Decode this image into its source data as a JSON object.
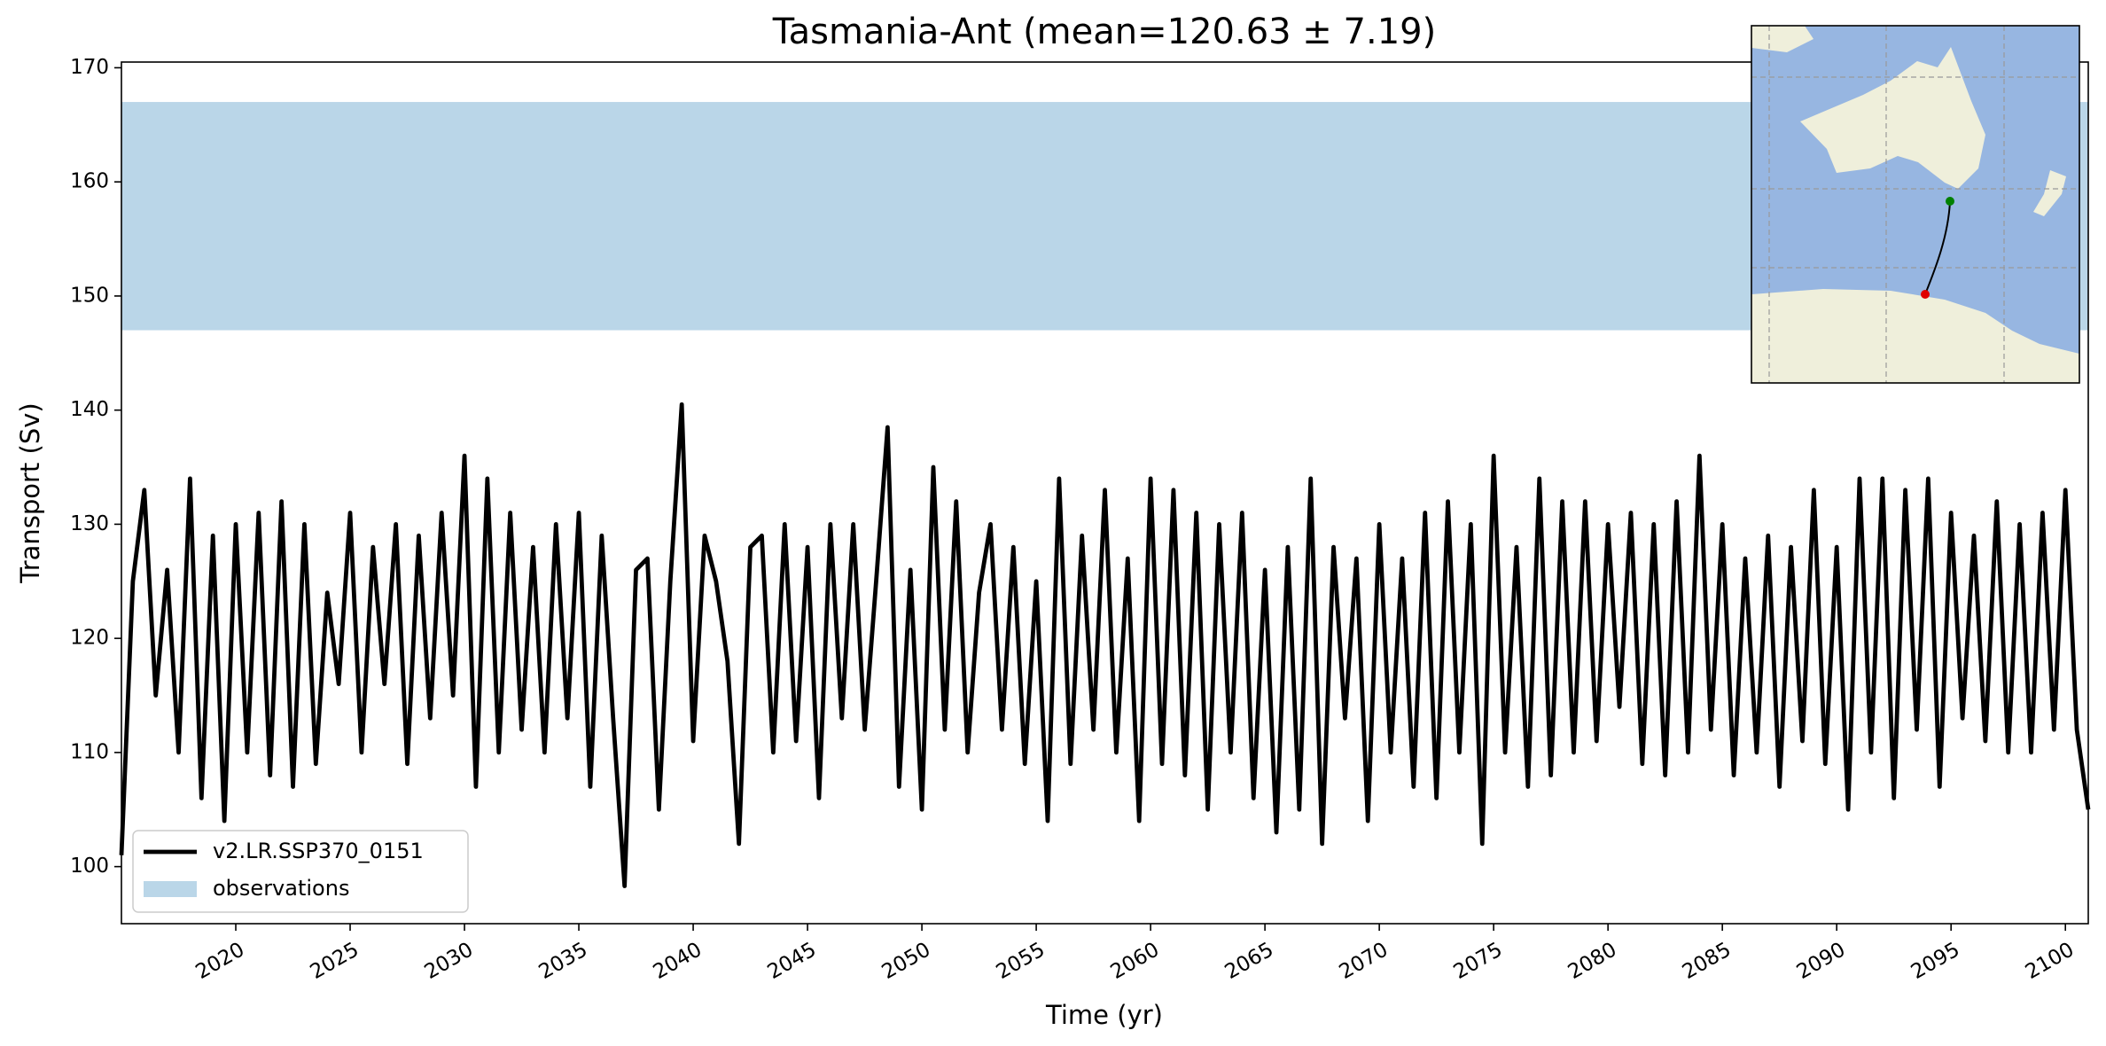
{
  "chart_data": {
    "type": "line",
    "title": "Tasmania-Ant (mean=120.63 ± 7.19)",
    "xlabel": "Time (yr)",
    "ylabel": "Transport (Sv)",
    "x": [
      2015,
      2015.5,
      2016,
      2016.5,
      2017,
      2017.5,
      2018,
      2018.5,
      2019,
      2019.5,
      2020,
      2020.5,
      2021,
      2021.5,
      2022,
      2022.5,
      2023,
      2023.5,
      2024,
      2024.5,
      2025,
      2025.5,
      2026,
      2026.5,
      2027,
      2027.5,
      2028,
      2028.5,
      2029,
      2029.5,
      2030,
      2030.5,
      2031,
      2031.5,
      2032,
      2032.5,
      2033,
      2033.5,
      2034,
      2034.5,
      2035,
      2035.5,
      2036,
      2036.5,
      2037,
      2037.5,
      2038,
      2038.5,
      2039,
      2039.5,
      2040,
      2040.5,
      2041,
      2041.5,
      2042,
      2042.5,
      2043,
      2043.5,
      2044,
      2044.5,
      2045,
      2045.5,
      2046,
      2046.5,
      2047,
      2047.5,
      2048,
      2048.5,
      2049,
      2049.5,
      2050,
      2050.5,
      2051,
      2051.5,
      2052,
      2052.5,
      2053,
      2053.5,
      2054,
      2054.5,
      2055,
      2055.5,
      2056,
      2056.5,
      2057,
      2057.5,
      2058,
      2058.5,
      2059,
      2059.5,
      2060,
      2060.5,
      2061,
      2061.5,
      2062,
      2062.5,
      2063,
      2063.5,
      2064,
      2064.5,
      2065,
      2065.5,
      2066,
      2066.5,
      2067,
      2067.5,
      2068,
      2068.5,
      2069,
      2069.5,
      2070,
      2070.5,
      2071,
      2071.5,
      2072,
      2072.5,
      2073,
      2073.5,
      2074,
      2074.5,
      2075,
      2075.5,
      2076,
      2076.5,
      2077,
      2077.5,
      2078,
      2078.5,
      2079,
      2079.5,
      2080,
      2080.5,
      2081,
      2081.5,
      2082,
      2082.5,
      2083,
      2083.5,
      2084,
      2084.5,
      2085,
      2085.5,
      2086,
      2086.5,
      2087,
      2087.5,
      2088,
      2088.5,
      2089,
      2089.5,
      2090,
      2090.5,
      2091,
      2091.5,
      2092,
      2092.5,
      2093,
      2093.5,
      2094,
      2094.5,
      2095,
      2095.5,
      2096,
      2096.5,
      2097,
      2097.5,
      2098,
      2098.5,
      2099,
      2099.5,
      2100,
      2100.5,
      2101
    ],
    "series": [
      {
        "name": "v2.LR.SSP370_0151",
        "color": "#000000",
        "values": [
          101,
          125,
          133,
          115,
          126,
          110,
          134,
          106,
          129,
          104,
          130,
          110,
          131,
          108,
          132,
          107,
          130,
          109,
          124,
          116,
          131,
          110,
          128,
          116,
          130,
          109,
          129,
          113,
          131,
          115,
          136,
          107,
          134,
          110,
          131,
          112,
          128,
          110,
          130,
          113,
          131,
          107,
          129,
          113,
          98.3,
          126,
          127,
          105,
          125,
          140.5,
          111,
          129,
          125,
          118,
          102,
          128,
          129,
          110,
          130,
          111,
          128,
          106,
          130,
          113,
          130,
          112,
          125,
          138.5,
          107,
          126,
          105,
          135,
          112,
          132,
          110,
          124,
          130,
          112,
          128,
          109,
          125,
          104,
          134,
          109,
          129,
          112,
          133,
          110,
          127,
          104,
          134,
          109,
          133,
          108,
          131,
          105,
          130,
          110,
          131,
          106,
          126,
          103,
          128,
          105,
          134,
          102,
          128,
          113,
          127,
          104,
          130,
          110,
          127,
          107,
          131,
          106,
          132,
          110,
          130,
          102,
          136,
          110,
          128,
          107,
          134,
          108,
          132,
          110,
          132,
          111,
          130,
          114,
          131,
          109,
          130,
          108,
          132,
          110,
          136,
          112,
          130,
          108,
          127,
          110,
          129,
          107,
          128,
          111,
          133,
          109,
          128,
          105,
          134,
          110,
          134,
          106,
          133,
          112,
          134,
          107,
          131,
          113,
          129,
          111,
          132,
          110,
          130,
          110,
          131,
          112,
          133,
          112,
          105
        ]
      }
    ],
    "observation_band": {
      "name": "observations",
      "values": [
        147,
        167
      ],
      "color": "#bad6e8"
    },
    "xlim": [
      2015,
      2101
    ],
    "ylim": [
      95,
      170.5
    ],
    "xticks": [
      2020,
      2025,
      2030,
      2035,
      2040,
      2045,
      2050,
      2055,
      2060,
      2065,
      2070,
      2075,
      2080,
      2085,
      2090,
      2095,
      2100
    ],
    "yticks": [
      100,
      110,
      120,
      130,
      140,
      150,
      160,
      170
    ],
    "legend": "lower left"
  }
}
